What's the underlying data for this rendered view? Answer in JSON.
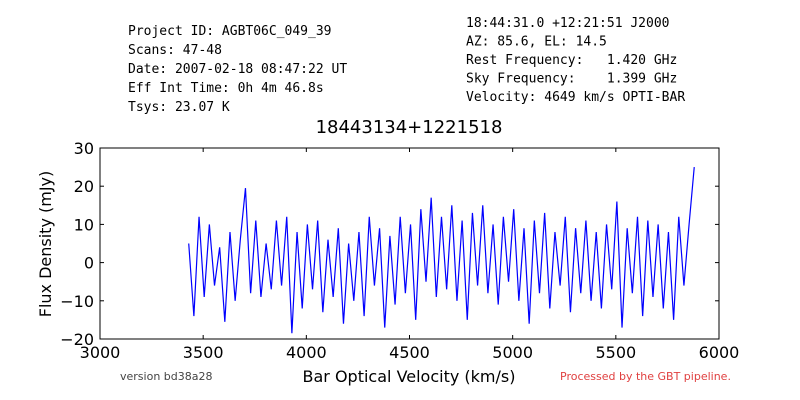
{
  "chart_data": {
    "type": "line",
    "title": "18443134+1221518",
    "header_left": [
      "Project ID: AGBT06C_049_39",
      "Scans: 47-48",
      "Date: 2007-02-18 08:47:22 UT",
      "Eff Int Time: 0h 4m 46.8s",
      "Tsys: 23.07 K"
    ],
    "header_right": [
      "18:44:31.0 +12:21:51 J2000",
      "AZ: 85.6, EL: 14.5",
      "Rest Frequency:   1.420 GHz",
      "Sky Frequency:    1.399 GHz",
      "Velocity: 4649 km/s OPTI-BAR"
    ],
    "xlabel": "Bar Optical Velocity (km/s)",
    "ylabel": "Flux Density (mJy)",
    "footer_left": "version bd38a28",
    "footer_right": "Processed by the GBT pipeline.",
    "xlim": [
      3000,
      6000
    ],
    "xticks": [
      3000,
      3500,
      4000,
      4500,
      5000,
      5500,
      6000
    ],
    "ylim": [
      -20,
      30
    ],
    "yticks": [
      {
        "value": -20,
        "label": "−20"
      },
      {
        "value": -10,
        "label": "−10"
      },
      0,
      10,
      20,
      30
    ],
    "x": [
      3430,
      3455,
      3480,
      3505,
      3530,
      3555,
      3580,
      3605,
      3630,
      3655,
      3680,
      3705,
      3730,
      3755,
      3780,
      3805,
      3830,
      3855,
      3880,
      3905,
      3930,
      3955,
      3980,
      4005,
      4030,
      4055,
      4080,
      4105,
      4130,
      4155,
      4180,
      4205,
      4230,
      4255,
      4280,
      4305,
      4330,
      4355,
      4380,
      4405,
      4430,
      4455,
      4480,
      4505,
      4530,
      4555,
      4580,
      4605,
      4630,
      4655,
      4680,
      4705,
      4730,
      4755,
      4780,
      4805,
      4830,
      4855,
      4880,
      4905,
      4930,
      4955,
      4980,
      5005,
      5030,
      5055,
      5080,
      5105,
      5130,
      5155,
      5180,
      5205,
      5230,
      5255,
      5280,
      5305,
      5330,
      5355,
      5380,
      5405,
      5430,
      5455,
      5480,
      5505,
      5530,
      5555,
      5580,
      5605,
      5630,
      5655,
      5680,
      5705,
      5730,
      5755,
      5780,
      5805,
      5830,
      5855,
      5880
    ],
    "series": [
      {
        "color": "#0000ff",
        "values": [
          5,
          -14,
          12,
          -9,
          10,
          -6,
          4,
          -15.5,
          8,
          -10,
          6,
          19.5,
          -8,
          11,
          -9,
          5,
          -7,
          11,
          -6,
          12,
          -18.5,
          8,
          -12,
          10,
          -7,
          11,
          -13,
          6,
          -9,
          9,
          -16,
          5,
          -10,
          8,
          -14,
          12,
          -6,
          9,
          -17,
          7,
          -11,
          12,
          -8,
          10,
          -15,
          14,
          -5,
          17,
          -9,
          12,
          -7,
          15,
          -10,
          11,
          -15,
          13,
          -6,
          15,
          -8,
          10,
          -11,
          12,
          -5,
          14,
          -10,
          9,
          -16,
          11,
          -8,
          13,
          -12,
          8,
          -6,
          12,
          -13,
          9,
          -8,
          11,
          -10,
          8,
          -12,
          10,
          -7,
          16,
          -17,
          9,
          -8,
          12,
          -14,
          11,
          -9,
          10,
          -12,
          8,
          -15,
          12,
          -6,
          10,
          25
        ]
      }
    ]
  }
}
